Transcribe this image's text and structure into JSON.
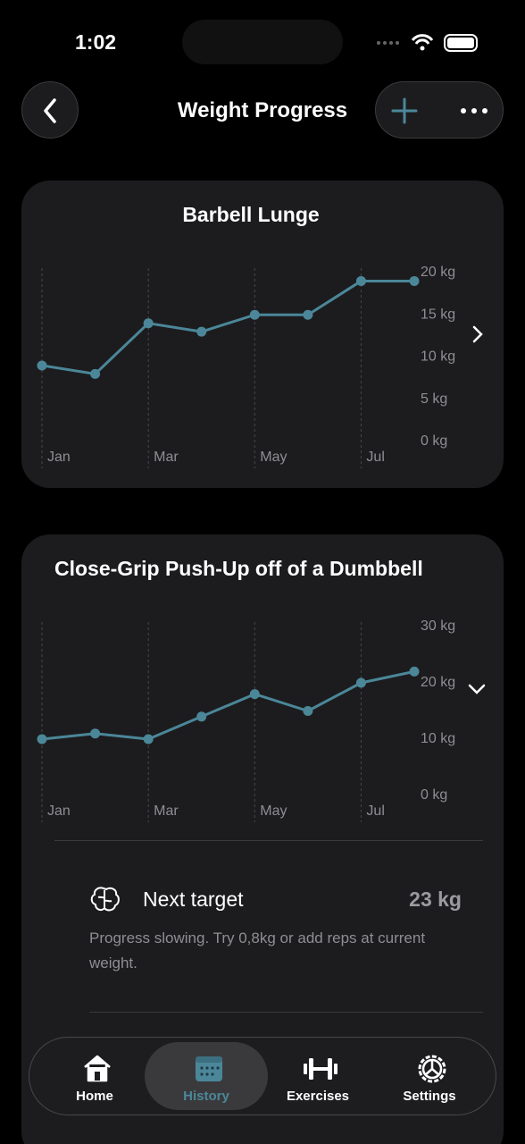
{
  "status_bar": {
    "time": "1:02"
  },
  "header": {
    "title": "Weight Progress"
  },
  "chart_data": [
    {
      "type": "line",
      "title": "Barbell Lunge",
      "categories": [
        "Jan",
        null,
        "Mar",
        null,
        "May",
        null,
        "Jul",
        null
      ],
      "values": [
        9,
        8,
        14,
        13,
        15,
        15,
        19,
        19
      ],
      "ylim": [
        0,
        20
      ],
      "yticks": [
        {
          "value": 0,
          "label": "0 kg"
        },
        {
          "value": 5,
          "label": "5 kg"
        },
        {
          "value": 10,
          "label": "10 kg"
        },
        {
          "value": 15,
          "label": "15 kg"
        },
        {
          "value": 20,
          "label": "20 kg"
        }
      ],
      "color": "#4b8799",
      "grid": true
    },
    {
      "type": "line",
      "title": "Close-Grip Push-Up off of a Dumbbell",
      "categories": [
        "Jan",
        null,
        "Mar",
        null,
        "May",
        null,
        "Jul",
        null
      ],
      "values": [
        10,
        11,
        10,
        14,
        18,
        15,
        20,
        22
      ],
      "ylim": [
        0,
        30
      ],
      "yticks": [
        {
          "value": 0,
          "label": "0 kg"
        },
        {
          "value": 10,
          "label": "10 kg"
        },
        {
          "value": 20,
          "label": "20 kg"
        },
        {
          "value": 30,
          "label": "30 kg"
        }
      ],
      "color": "#4b8799",
      "grid": true
    }
  ],
  "insight": {
    "title": "Next target",
    "value": "23 kg",
    "text": "Progress slowing. Try 0,8kg or add reps at current weight."
  },
  "tab_bar": {
    "items": [
      "Home",
      "History",
      "Exercises",
      "Settings"
    ],
    "active": 1
  }
}
